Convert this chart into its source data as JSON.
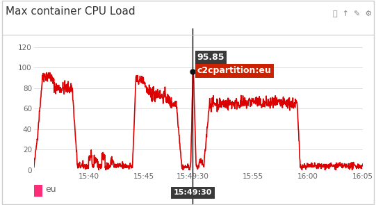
{
  "title": "Max container CPU Load",
  "bg_color": "#ffffff",
  "plot_bg_color": "#ffffff",
  "line_color": "#dd0000",
  "line_width": 1.2,
  "ylim": [
    0,
    120
  ],
  "yticks": [
    0,
    20,
    40,
    60,
    80,
    100,
    120
  ],
  "xlim": [
    0,
    30
  ],
  "x_tick_pos": [
    5,
    10,
    14.5,
    20,
    25,
    30
  ],
  "x_tick_labels": [
    "15:40",
    "15:45",
    "15:49:30",
    "15:55",
    "16:00",
    "16:05"
  ],
  "cursor_x": 14.5,
  "cursor_y": 95.85,
  "cursor_time": "15:49:30",
  "tooltip_value": "95.85",
  "tooltip_label": "c2cpartition:eu",
  "legend_label": "eu",
  "legend_color": "#ff2d78",
  "grid_color": "#e0e0e0",
  "border_color": "#cccccc",
  "title_color": "#333333",
  "tick_color": "#666666",
  "tooltip_bg": "#3a3a3a",
  "tooltip_red": "#cc2200",
  "figsize": [
    5.41,
    2.95
  ],
  "dpi": 100
}
